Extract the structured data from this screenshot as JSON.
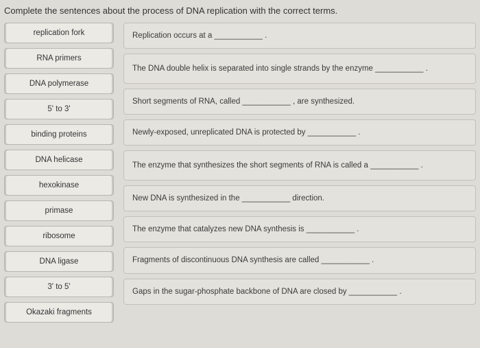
{
  "header": "Complete the sentences about the process of DNA replication with the correct terms.",
  "terms": [
    "replication fork",
    "RNA primers",
    "DNA polymerase",
    "5' to 3'",
    "binding proteins",
    "DNA helicase",
    "hexokinase",
    "primase",
    "ribosome",
    "DNA ligase",
    "3' to 5'",
    "Okazaki fragments"
  ],
  "sentences": [
    "Replication occurs at a ___________ .",
    "The DNA double helix is separated into single strands by the enzyme ___________ .",
    "Short segments of RNA, called ___________ , are synthesized.",
    "Newly-exposed, unreplicated DNA is protected by ___________ .",
    "The enzyme that synthesizes the short segments of RNA is called a ___________ .",
    "New DNA is synthesized in the ___________ direction.",
    "The enzyme that catalyzes new DNA synthesis is ___________ .",
    "Fragments of discontinuous DNA synthesis are called ___________ .",
    "Gaps in the sugar-phosphate backbone of DNA are closed by ___________ ."
  ],
  "colors": {
    "page_bg": "#dedcd7",
    "card_bg": "#e4e2dc",
    "term_bg": "#eceae5",
    "border": "#b8b6b0",
    "text": "#3a3a3a"
  }
}
